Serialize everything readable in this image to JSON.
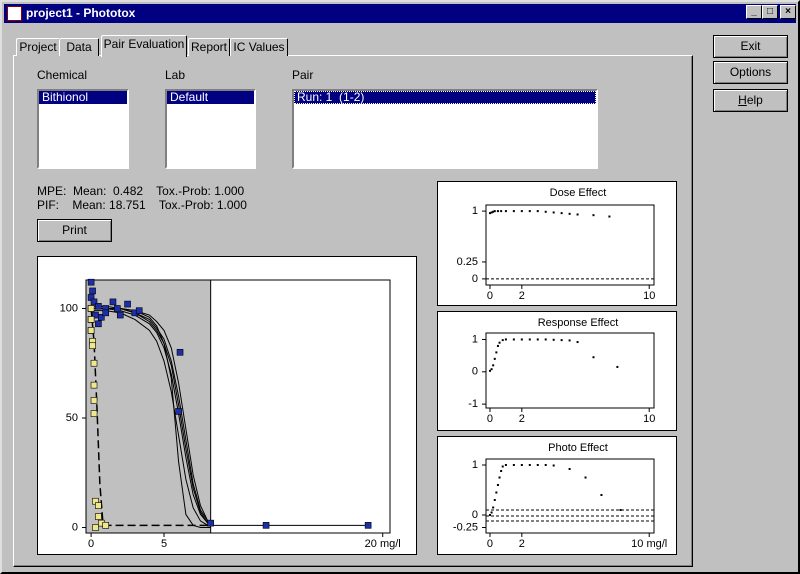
{
  "window": {
    "title": "project1 - Phototox"
  },
  "tabs": [
    "Project",
    "Data",
    "Pair Evaluation",
    "Report",
    "IC Values"
  ],
  "buttons": [
    "Exit",
    "Options",
    "Help"
  ],
  "lists": [
    {
      "label": "Chemical",
      "items": [
        "Bithionol"
      ]
    },
    {
      "label": "Lab",
      "items": [
        "Default"
      ]
    },
    {
      "label": "Pair",
      "items": [
        "Run: 1  (1-2)"
      ]
    }
  ],
  "stats": [
    "MPE:  Mean:  0.482    Tox.-Prob: 1.000",
    "PIF:    Mean: 18.751    Tox.-Prob: 1.000"
  ],
  "print_button": "Print",
  "charts": [
    {
      "type": "scatter",
      "xlim": [
        -0.35,
        20.5
      ],
      "ylim": [
        -2.5,
        113
      ],
      "xticks": [
        0,
        5,
        {
          "value": 20,
          "label": "20 mg/l"
        }
      ],
      "yticks": [
        0,
        50,
        100
      ],
      "shaded_xmax": 8.2,
      "series": [
        {
          "mode": "line",
          "color": "#000000",
          "x": [
            0,
            1,
            2,
            3,
            4,
            4.5,
            5,
            5.5,
            6,
            6.5,
            7,
            7.5,
            8,
            8.2
          ],
          "values": [
            100,
            100,
            99,
            97,
            93,
            89,
            82,
            70,
            52,
            32,
            15,
            6,
            2,
            1
          ]
        },
        {
          "mode": "line",
          "color": "#000000",
          "x": [
            0,
            1,
            2,
            3,
            4,
            4.5,
            5,
            5.5,
            6,
            6.5,
            7,
            7.5,
            8,
            8.2
          ],
          "values": [
            100,
            100,
            100,
            98,
            95,
            91,
            86,
            76,
            60,
            40,
            20,
            8,
            3,
            1
          ]
        },
        {
          "mode": "line",
          "color": "#000000",
          "x": [
            0,
            1,
            2,
            3,
            4,
            4.5,
            5,
            5.5,
            6,
            6.5,
            7,
            7.5,
            8,
            8.2
          ],
          "values": [
            101,
            101,
            100,
            98,
            94,
            90,
            84,
            74,
            56,
            36,
            18,
            7,
            2,
            1
          ]
        },
        {
          "mode": "line",
          "color": "#000000",
          "x": [
            0,
            1,
            2,
            3,
            4,
            4.5,
            5,
            5.5,
            6,
            6.5,
            7,
            7.5,
            8,
            8.2
          ],
          "values": [
            99,
            99,
            98,
            95,
            90,
            85,
            76,
            62,
            42,
            22,
            9,
            3,
            1,
            1
          ]
        },
        {
          "mode": "line",
          "color": "#000000",
          "x": [
            0,
            1,
            2,
            3,
            4,
            4.5,
            5,
            5.5,
            6,
            6.5,
            7,
            7.5,
            8,
            8.2
          ],
          "values": [
            100,
            100,
            100,
            99,
            96,
            92,
            84,
            68,
            30,
            6,
            1,
            0,
            0,
            0
          ]
        },
        {
          "mode": "line",
          "color": "#000000",
          "x": [
            0,
            1,
            2,
            3,
            4,
            4.5,
            5,
            5.5,
            6,
            6.5,
            7,
            7.5,
            8,
            8.2
          ],
          "values": [
            100,
            100,
            100,
            99,
            97,
            94,
            90,
            82,
            66,
            45,
            24,
            10,
            3,
            1
          ]
        },
        {
          "mode": "line",
          "color": "#000000",
          "x": [
            8.2,
            19
          ],
          "values": [
            1,
            1
          ]
        },
        {
          "mode": "dashed",
          "color": "#000000",
          "x": [
            0,
            0.2,
            0.4,
            0.6,
            0.8,
            1,
            8.2
          ],
          "values": [
            100,
            85,
            55,
            20,
            3,
            1,
            1
          ]
        },
        {
          "mode": "markers",
          "color": "#1c2fa8",
          "x": [
            0,
            0,
            0,
            0,
            0,
            0.1,
            0.2,
            0.3,
            0.5,
            0.5,
            0.7,
            1,
            1,
            1.5,
            1.8,
            2,
            2.5,
            3,
            3.3,
            6.1,
            6,
            8.2,
            12,
            19
          ],
          "values": [
            112,
            105,
            100,
            95,
            90,
            108,
            103,
            97,
            101,
            93,
            96,
            100,
            98,
            103,
            100,
            97,
            102,
            98,
            99,
            80,
            53,
            2,
            1,
            1
          ]
        },
        {
          "mode": "markers",
          "color": "#f0e68c",
          "x": [
            0,
            0,
            0,
            0.1,
            0.1,
            0.2,
            0.2,
            0.2,
            0.2,
            0.3,
            0.5,
            0.5,
            0.7,
            1,
            0.3
          ],
          "values": [
            100,
            95,
            90,
            85,
            83,
            75,
            65,
            58,
            52,
            12,
            10,
            5,
            2,
            1,
            0
          ]
        }
      ]
    },
    {
      "type": "scatter",
      "title": "Dose Effect",
      "xlim": [
        -0.25,
        10.3
      ],
      "ylim": [
        -0.09,
        1.09
      ],
      "xticks": [
        0,
        2,
        10
      ],
      "yticks": [
        0,
        0.25,
        1
      ],
      "ref_lines": [
        0
      ],
      "series": [
        {
          "mode": "dots",
          "color": "#000000",
          "x": [
            0,
            0.1,
            0.2,
            0.3,
            0.5,
            0.7,
            1,
            1.5,
            2,
            2.5,
            3,
            3.5,
            4,
            4.5,
            5,
            5.5,
            6.5,
            7.5
          ],
          "values": [
            0.97,
            0.98,
            0.99,
            1,
            1,
            1,
            1,
            1,
            1,
            1,
            1,
            0.99,
            0.98,
            0.97,
            0.96,
            0.95,
            0.94,
            0.92
          ]
        }
      ]
    },
    {
      "type": "scatter",
      "title": "Response Effect",
      "xlim": [
        -0.25,
        10.3
      ],
      "ylim": [
        -1.12,
        1.2
      ],
      "xticks": [
        0,
        2,
        10
      ],
      "yticks": [
        -1,
        0,
        1
      ],
      "series": [
        {
          "mode": "dots",
          "color": "#000000",
          "x": [
            0,
            0.1,
            0.2,
            0.3,
            0.4,
            0.5,
            0.6,
            0.8,
            1,
            1.5,
            2,
            2.5,
            3,
            3.5,
            4,
            4.5,
            5,
            5.5,
            6.5,
            8
          ],
          "values": [
            0.03,
            0.08,
            0.2,
            0.4,
            0.6,
            0.8,
            0.9,
            0.98,
            1,
            1,
            1,
            1,
            1,
            1,
            0.99,
            0.98,
            0.97,
            0.92,
            0.45,
            0.15
          ]
        }
      ]
    },
    {
      "type": "scatter",
      "title": "Photo Effect",
      "xlim": [
        -0.25,
        10.3
      ],
      "ylim": [
        -0.36,
        1.12
      ],
      "xticks": [
        0,
        2,
        {
          "value": 10,
          "label": "10 mg/l"
        }
      ],
      "yticks": [
        -0.25,
        0,
        1
      ],
      "ref_lines": [
        0.1,
        -0.02,
        -0.12
      ],
      "series": [
        {
          "mode": "dots",
          "color": "#000000",
          "x": [
            0,
            0.1,
            0.2,
            0.3,
            0.4,
            0.5,
            0.6,
            0.7,
            0.8,
            1,
            1.5,
            2,
            2.5,
            3,
            3.5,
            4,
            5,
            6,
            7,
            8.2
          ],
          "values": [
            0,
            0.05,
            0.15,
            0.3,
            0.45,
            0.6,
            0.75,
            0.88,
            0.97,
            1,
            1,
            1,
            1,
            1,
            1,
            0.99,
            0.92,
            0.75,
            0.4,
            0.1
          ]
        }
      ]
    }
  ]
}
